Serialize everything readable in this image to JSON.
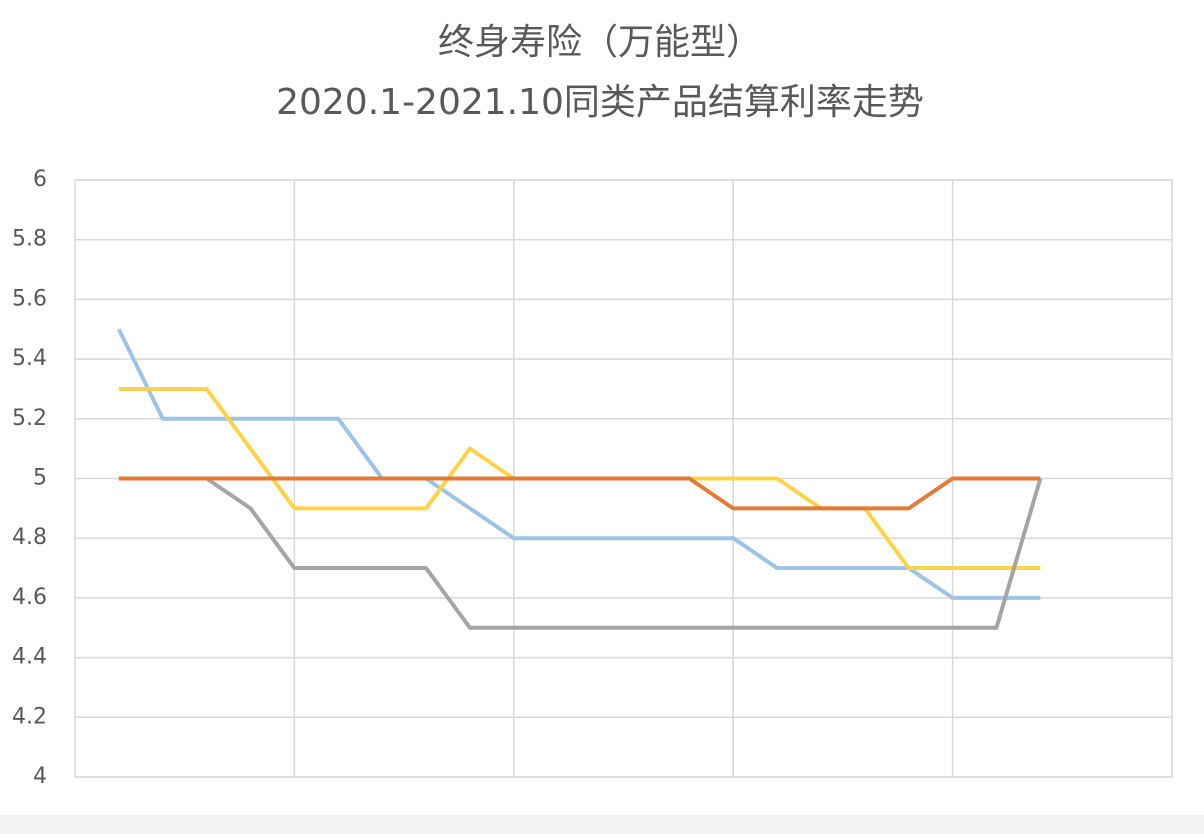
{
  "chart_data": {
    "type": "line",
    "title": "终身寿险（万能型）",
    "subtitle": "2020.1-2021.10同类产品结算利率走势",
    "categories": [
      null,
      null,
      null,
      null,
      null,
      null,
      null,
      null,
      null,
      null,
      null,
      null,
      null,
      null,
      null,
      null,
      null,
      null,
      null,
      null,
      null,
      null
    ],
    "series": [
      {
        "color": "#9dc3e6",
        "values": [
          5.5,
          5.2,
          5.2,
          5.2,
          5.2,
          5.2,
          5.0,
          5.0,
          4.9,
          4.8,
          4.8,
          4.8,
          4.8,
          4.8,
          4.8,
          4.7,
          4.7,
          4.7,
          4.7,
          4.6,
          4.6,
          4.6
        ]
      },
      {
        "color": "#ffd24d",
        "values": [
          5.3,
          5.3,
          5.3,
          5.1,
          4.9,
          4.9,
          4.9,
          4.9,
          5.1,
          5.0,
          5.0,
          5.0,
          5.0,
          5.0,
          5.0,
          5.0,
          4.9,
          4.9,
          4.7,
          4.7,
          4.7,
          4.7
        ]
      },
      {
        "color": "#a5a5a5",
        "values": [
          5.0,
          5.0,
          5.0,
          4.9,
          4.7,
          4.7,
          4.7,
          4.7,
          4.5,
          4.5,
          4.5,
          4.5,
          4.5,
          4.5,
          4.5,
          4.5,
          4.5,
          4.5,
          4.5,
          4.5,
          4.5,
          5.0
        ]
      },
      {
        "color": "#e07b39",
        "values": [
          5.0,
          5.0,
          5.0,
          5.0,
          5.0,
          5.0,
          5.0,
          5.0,
          5.0,
          5.0,
          5.0,
          5.0,
          5.0,
          5.0,
          4.9,
          4.9,
          4.9,
          4.9,
          4.9,
          5.0,
          5.0,
          5.0
        ]
      }
    ],
    "ylim": [
      4,
      6
    ],
    "yticks": [
      4,
      4.2,
      4.4,
      4.6,
      4.8,
      5,
      5.2,
      5.4,
      5.6,
      5.8,
      6
    ],
    "grid": true
  }
}
